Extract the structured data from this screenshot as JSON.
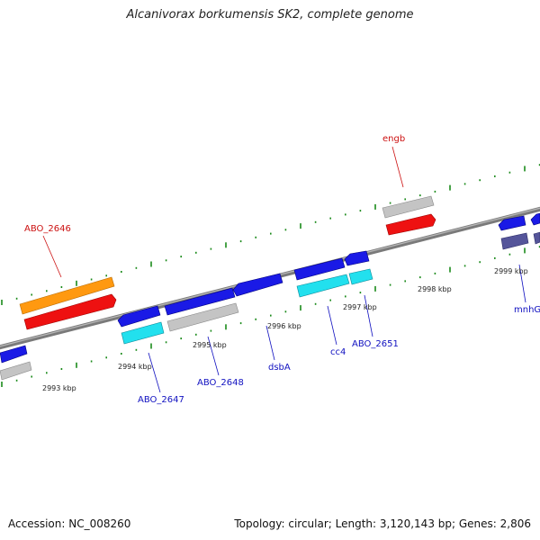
{
  "header": {
    "title": "Alcanivorax borkumensis SK2, complete genome"
  },
  "footer": {
    "accession": "Accession: NC_008260",
    "topology": "Topology: circular; Length: 3,120,143 bp; Genes: 2,806"
  },
  "colors": {
    "backbone": "#8a8a8a",
    "tick": "#1a8a1a",
    "blue_gene": "#1a1ae6",
    "light_blue_gene": "#22e0ee",
    "gray_gene": "#c4c4c4",
    "red_gene": "#ee1111",
    "orange_gene": "#ff9910",
    "slate_gene": "#55559a",
    "label_blue": "#1010c0",
    "label_red": "#cc1111"
  },
  "ticks": [
    {
      "label": "2993 kbp"
    },
    {
      "label": "2994 kbp"
    },
    {
      "label": "2995 kbp"
    },
    {
      "label": "2996 kbp"
    },
    {
      "label": "2997 kbp"
    },
    {
      "label": "2998 kbp"
    },
    {
      "label": "2999 kbp"
    }
  ],
  "gene_labels": [
    {
      "text": "ABO_2646",
      "color": "red"
    },
    {
      "text": "engb",
      "color": "red"
    },
    {
      "text": "ABO_2647",
      "color": "blue"
    },
    {
      "text": "ABO_2648",
      "color": "blue"
    },
    {
      "text": "dsbA",
      "color": "blue"
    },
    {
      "text": "cc4",
      "color": "blue"
    },
    {
      "text": "ABO_2651",
      "color": "blue"
    },
    {
      "text": "mnhG",
      "color": "blue"
    }
  ]
}
